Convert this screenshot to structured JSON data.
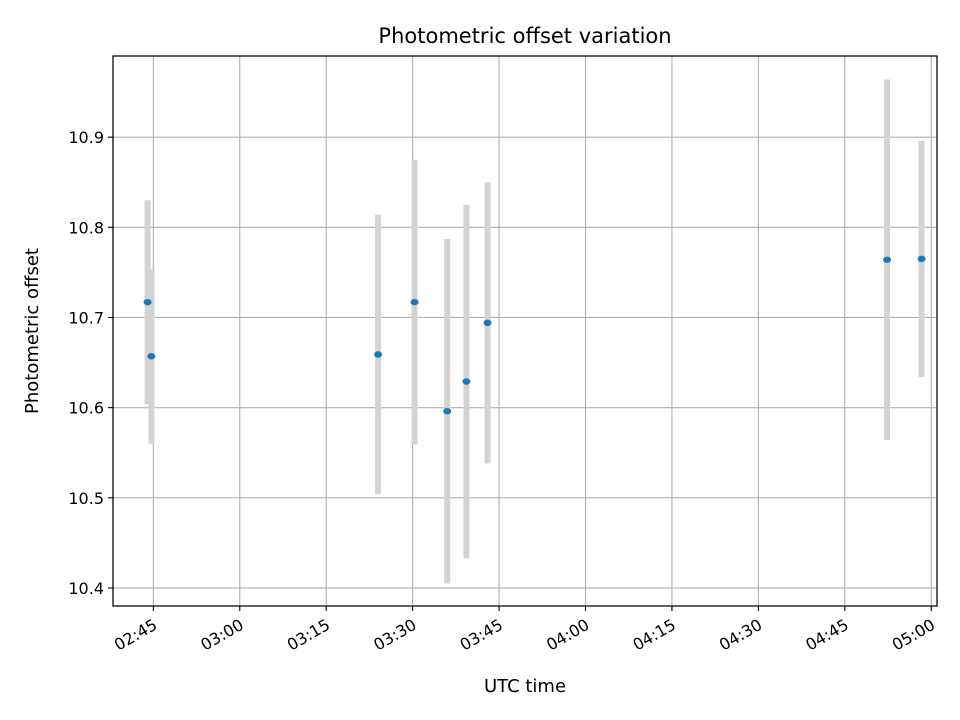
{
  "chart_data": {
    "type": "scatter",
    "title": "Photometric offset variation",
    "xlabel": "UTC time",
    "ylabel": "Photometric offset",
    "grid": true,
    "xlim": [
      "02:38",
      "05:01"
    ],
    "ylim": [
      10.38,
      10.99
    ],
    "x_ticks": [
      "02:45",
      "03:00",
      "03:15",
      "03:30",
      "03:45",
      "04:00",
      "04:15",
      "04:30",
      "04:45",
      "05:00"
    ],
    "y_ticks": [
      "10.4",
      "10.5",
      "10.6",
      "10.7",
      "10.8",
      "10.9"
    ],
    "point_color": "#1f77b4",
    "errorbar_color": "#d3d3d3",
    "points": [
      {
        "time": "02:44:00",
        "y": 10.717,
        "err": 0.113
      },
      {
        "time": "02:44:40",
        "y": 10.657,
        "err": 0.097
      },
      {
        "time": "03:24:00",
        "y": 10.659,
        "err": 0.155
      },
      {
        "time": "03:30:20",
        "y": 10.717,
        "err": 0.158
      },
      {
        "time": "03:36:00",
        "y": 10.596,
        "err": 0.191
      },
      {
        "time": "03:39:20",
        "y": 10.629,
        "err": 0.196
      },
      {
        "time": "03:43:00",
        "y": 10.694,
        "err": 0.156
      },
      {
        "time": "04:52:20",
        "y": 10.764,
        "err": 0.2
      },
      {
        "time": "04:58:20",
        "y": 10.765,
        "err": 0.131
      }
    ]
  }
}
